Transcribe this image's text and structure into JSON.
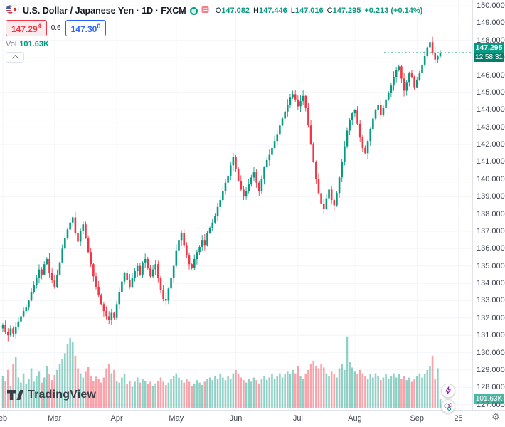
{
  "legend": {
    "title": "U.S. Dollar / Japanese Yen · 1D · FXCM",
    "ohlc": {
      "o_label": "O",
      "o": "147.082",
      "h_label": "H",
      "h": "147.446",
      "l_label": "L",
      "l": "147.016",
      "c_label": "C",
      "c": "147.295",
      "change": "+0.213 (+0.14%)"
    },
    "bid": {
      "main": "147.29",
      "sup": "4"
    },
    "spread": "0.6",
    "ask": {
      "main": "147.30",
      "sup": "0"
    },
    "vol_label": "Vol",
    "vol_value": "101.63K"
  },
  "badges": {
    "price": "147.295",
    "countdown": "12:58:31",
    "volume": "101.63K"
  },
  "logo": {
    "text": "TradingView"
  },
  "icons": {
    "gear": "⚙"
  },
  "colors": {
    "up": "#089981",
    "down": "#f23645",
    "bid": "#f23645",
    "ask": "#2962ff"
  },
  "chart_data": {
    "type": "candlestick",
    "title": "U.S. Dollar / Japanese Yen, 1D, FXCM",
    "symbol": "USD/JPY",
    "timeframe": "1D",
    "ylim": [
      126.7,
      150.33
    ],
    "y_ticks": [
      "150.000",
      "149.000",
      "148.000",
      "147.000",
      "146.000",
      "145.000",
      "144.000",
      "143.000",
      "142.000",
      "141.000",
      "140.000",
      "139.000",
      "138.000",
      "137.000",
      "136.000",
      "135.000",
      "134.000",
      "133.000",
      "132.000",
      "131.000",
      "130.000",
      "129.000",
      "128.000",
      "127.000"
    ],
    "x_ticks": [
      {
        "label": "eb",
        "i": 0
      },
      {
        "label": "Mar",
        "i": 20
      },
      {
        "label": "Apr",
        "i": 44
      },
      {
        "label": "May",
        "i": 67
      },
      {
        "label": "Jun",
        "i": 90
      },
      {
        "label": "Jul",
        "i": 114
      },
      {
        "label": "Aug",
        "i": 136
      },
      {
        "label": "Sep",
        "i": 160
      },
      {
        "label": "25",
        "i": 176
      }
    ],
    "first_open": 131.4,
    "closes": [
      131.6,
      131.2,
      131.0,
      131.4,
      131.1,
      131.5,
      131.8,
      132.1,
      132.4,
      132.6,
      133.0,
      133.5,
      133.9,
      134.3,
      134.8,
      134.5,
      135.1,
      135.4,
      134.6,
      134.2,
      133.8,
      134.5,
      135.2,
      136.0,
      136.6,
      137.1,
      137.5,
      137.8,
      136.9,
      136.4,
      137.0,
      137.4,
      136.6,
      135.8,
      135.1,
      134.4,
      133.8,
      133.3,
      132.8,
      132.4,
      132.1,
      131.9,
      132.3,
      132.0,
      132.8,
      133.5,
      134.1,
      134.6,
      134.2,
      133.8,
      134.3,
      134.7,
      135.0,
      134.5,
      135.2,
      135.4,
      134.9,
      134.4,
      134.8,
      135.1,
      134.3,
      133.6,
      133.1,
      133.0,
      133.7,
      134.3,
      135.0,
      135.9,
      136.5,
      136.9,
      136.2,
      135.6,
      135.1,
      134.9,
      135.4,
      135.8,
      136.1,
      136.5,
      136.2,
      136.9,
      137.2,
      137.5,
      137.9,
      138.4,
      138.8,
      139.3,
      139.8,
      140.2,
      140.8,
      141.3,
      140.6,
      139.9,
      139.4,
      139.0,
      139.3,
      139.7,
      140.1,
      140.4,
      139.8,
      139.3,
      140.0,
      140.7,
      141.1,
      141.4,
      141.8,
      142.2,
      142.6,
      143.1,
      143.5,
      143.9,
      144.3,
      144.7,
      144.9,
      144.6,
      144.2,
      144.5,
      144.8,
      144.1,
      143.1,
      142.0,
      141.0,
      140.0,
      139.2,
      138.6,
      138.3,
      138.9,
      139.4,
      138.8,
      138.5,
      139.2,
      140.1,
      141.0,
      141.9,
      142.8,
      143.4,
      143.8,
      144.0,
      143.2,
      142.4,
      141.8,
      141.5,
      142.2,
      142.9,
      143.5,
      144.0,
      144.3,
      143.7,
      144.1,
      144.6,
      145.0,
      145.4,
      145.9,
      146.3,
      146.5,
      145.8,
      145.1,
      145.6,
      146.1,
      145.9,
      145.3,
      145.7,
      146.1,
      146.6,
      147.1,
      147.6,
      147.9,
      147.3,
      146.9,
      147.082,
      147.295
    ],
    "volumes_k": [
      380,
      320,
      450,
      260,
      520,
      610,
      360,
      300,
      410,
      280,
      340,
      470,
      310,
      380,
      430,
      300,
      360,
      500,
      400,
      330,
      390,
      450,
      520,
      580,
      650,
      760,
      830,
      780,
      620,
      470,
      410,
      360,
      430,
      490,
      380,
      320,
      370,
      340,
      300,
      360,
      470,
      520,
      410,
      450,
      320,
      300,
      360,
      400,
      280,
      320,
      250,
      310,
      360,
      300,
      340,
      320,
      280,
      310,
      260,
      290,
      320,
      360,
      310,
      270,
      300,
      340,
      380,
      410,
      360,
      330,
      300,
      340,
      310,
      260,
      290,
      330,
      300,
      270,
      310,
      340,
      360,
      330,
      380,
      340,
      400,
      360,
      330,
      380,
      340,
      410,
      450,
      400,
      360,
      330,
      300,
      340,
      310,
      360,
      330,
      290,
      340,
      380,
      330,
      360,
      400,
      340,
      380,
      410,
      360,
      400,
      430,
      400,
      450,
      410,
      500,
      380,
      340,
      400,
      450,
      520,
      560,
      500,
      470,
      520,
      480,
      410,
      380,
      430,
      400,
      360,
      470,
      520,
      450,
      850,
      550,
      480,
      430,
      400,
      450,
      410,
      380,
      340,
      400,
      360,
      410,
      380,
      330,
      360,
      400,
      340,
      380,
      410,
      360,
      400,
      340,
      380,
      330,
      360,
      310,
      340,
      380,
      410,
      360,
      400,
      450,
      500,
      620,
      340,
      470,
      101.63
    ],
    "last": {
      "open": 147.082,
      "high": 147.446,
      "low": 147.016,
      "close": 147.295,
      "change": "+0.213",
      "change_pct": "+0.14%",
      "volume_k": 101.63
    }
  }
}
